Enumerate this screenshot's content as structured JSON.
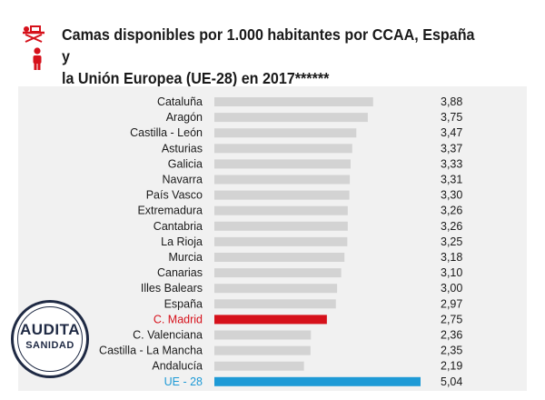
{
  "header": {
    "title_line1": "Camas disponibles por 1.000 habitantes por CCAA, España y",
    "title_line2": "la Unión Europea (UE-28) en 2017******"
  },
  "badge": {
    "line1": "AUDITA",
    "line2": "SANIDAD"
  },
  "icons": {
    "bed": "hospital-bed-icon",
    "person": "person-icon"
  },
  "colors": {
    "default_bar": "#d3d3d3",
    "highlight_madrid": "#d6111b",
    "highlight_eu": "#1e9ad6",
    "panel_bg": "#f1f1f1",
    "accent_red": "#d6111b",
    "badge_navy": "#1f2a44"
  },
  "chart_data": {
    "type": "bar",
    "orientation": "horizontal",
    "title": "Camas disponibles por 1.000 habitantes por CCAA, España y la Unión Europea (UE-28) en 2017******",
    "xlabel": "",
    "ylabel": "",
    "xlim": [
      0,
      5.04
    ],
    "grid": false,
    "categories": [
      "Cataluña",
      "Aragón",
      "Castilla - León",
      "Asturias",
      "Galicia",
      "Navarra",
      "País Vasco",
      "Extremadura",
      "Cantabria",
      "La Rioja",
      "Murcia",
      "Canarias",
      "Illes Balears",
      "España",
      "C. Madrid",
      "C. Valenciana",
      "Castilla - La Mancha",
      "Andalucía",
      "UE - 28"
    ],
    "values": [
      3.88,
      3.75,
      3.47,
      3.37,
      3.33,
      3.31,
      3.3,
      3.26,
      3.26,
      3.25,
      3.18,
      3.1,
      3.0,
      2.97,
      2.75,
      2.36,
      2.35,
      2.19,
      5.04
    ],
    "value_labels": [
      "3,88",
      "3,75",
      "3,47",
      "3,37",
      "3,33",
      "3,31",
      "3,30",
      "3,26",
      "3,26",
      "3,25",
      "3,18",
      "3,10",
      "3,00",
      "2,97",
      "2,75",
      "2,36",
      "2,35",
      "2,19",
      "5,04"
    ],
    "highlights": {
      "C. Madrid": "#d6111b",
      "UE - 28": "#1e9ad6"
    }
  }
}
